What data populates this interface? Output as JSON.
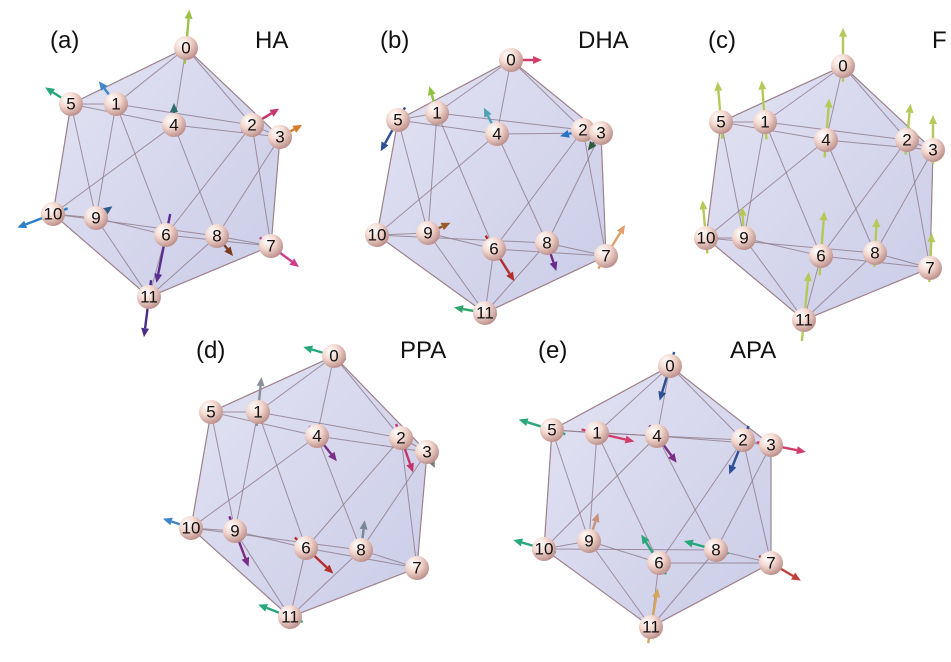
{
  "panels": [
    {
      "tag": "(a)",
      "title": "HA",
      "nodes": [
        "0",
        "1",
        "2",
        "3",
        "4",
        "5",
        "6",
        "7",
        "8",
        "9",
        "10",
        "11"
      ]
    },
    {
      "tag": "(b)",
      "title": "DHA",
      "nodes": [
        "0",
        "1",
        "2",
        "3",
        "4",
        "5",
        "6",
        "7",
        "8",
        "9",
        "10",
        "11"
      ]
    },
    {
      "tag": "(c)",
      "title": "F",
      "nodes": [
        "0",
        "1",
        "2",
        "3",
        "4",
        "5",
        "6",
        "7",
        "8",
        "9",
        "10",
        "11"
      ]
    },
    {
      "tag": "(d)",
      "title": "PPA",
      "nodes": [
        "0",
        "1",
        "2",
        "3",
        "4",
        "5",
        "6",
        "7",
        "8",
        "9",
        "10",
        "11"
      ]
    },
    {
      "tag": "(e)",
      "title": "APA",
      "nodes": [
        "0",
        "1",
        "2",
        "3",
        "4",
        "5",
        "6",
        "7",
        "8",
        "9",
        "10",
        "11"
      ]
    }
  ]
}
